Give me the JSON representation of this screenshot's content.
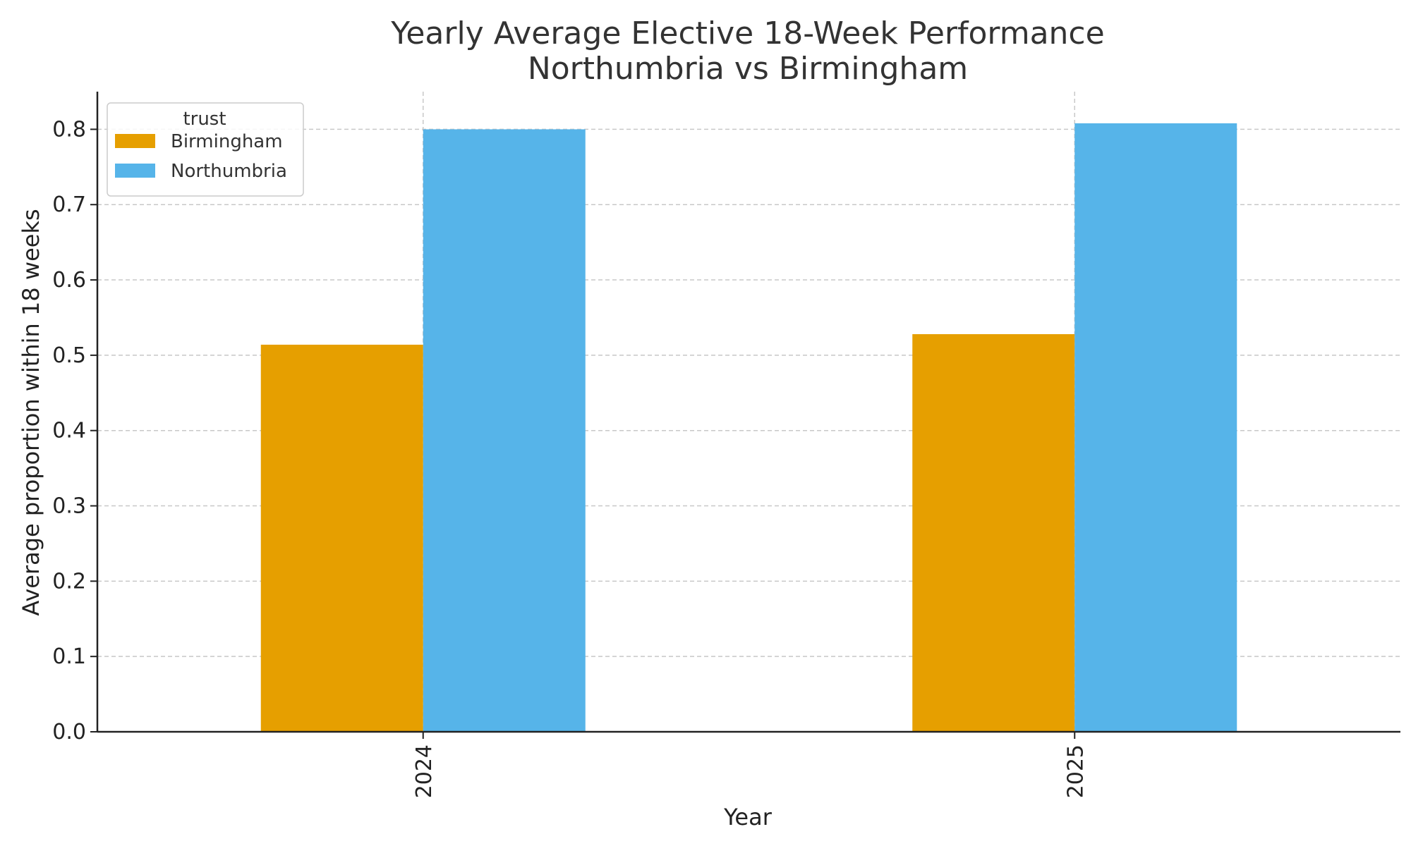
{
  "chart_data": {
    "type": "bar",
    "title": "Yearly Average Elective 18-Week Performance",
    "subtitle": "Northumbria vs Birmingham",
    "xlabel": "Year",
    "ylabel": "Average proportion within 18 weeks",
    "categories": [
      "2024",
      "2025"
    ],
    "series": [
      {
        "name": "Birmingham",
        "values": [
          0.514,
          0.528
        ],
        "color": "#E69F00"
      },
      {
        "name": "Northumbria",
        "values": [
          0.8,
          0.808
        ],
        "color": "#56B4E9"
      }
    ],
    "ylim": [
      0,
      0.85
    ],
    "yticks": [
      "0.0",
      "0.1",
      "0.2",
      "0.3",
      "0.4",
      "0.5",
      "0.6",
      "0.7",
      "0.8"
    ],
    "grid": true,
    "legend": {
      "title": "trust",
      "placement": "top-left"
    }
  }
}
